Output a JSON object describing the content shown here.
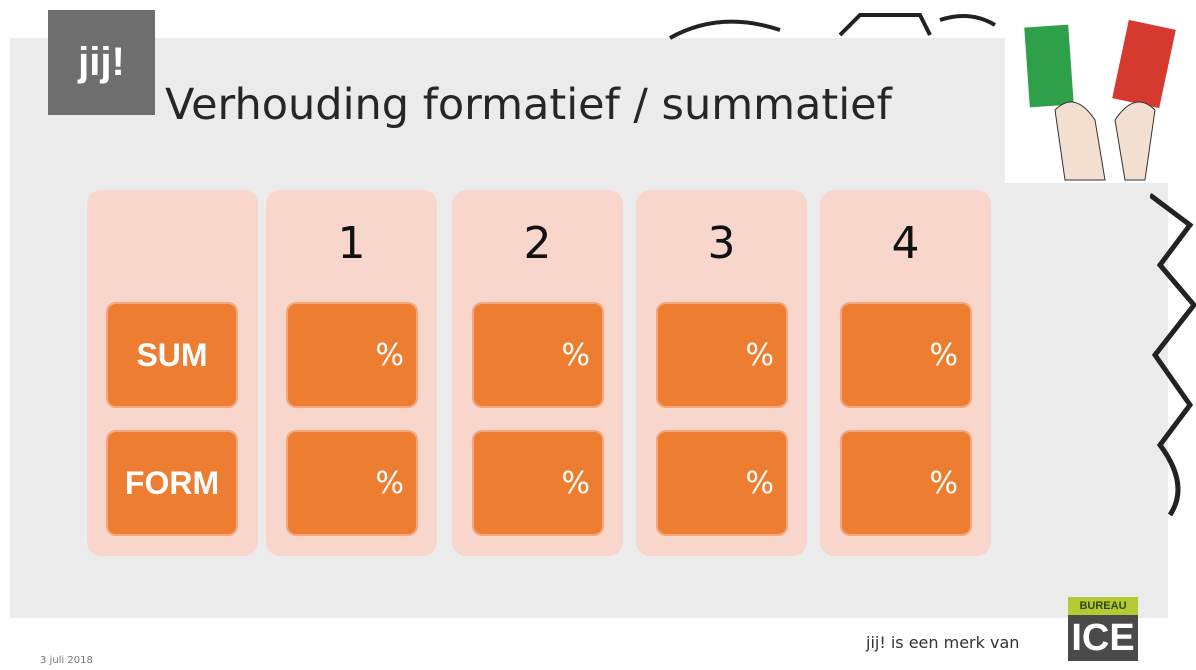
{
  "logo": "jij!",
  "title": "Verhouding formatief / summatief",
  "table": {
    "columns": [
      "1",
      "2",
      "3",
      "4"
    ],
    "rows": [
      {
        "label": "SUM",
        "cells": [
          "%",
          "%",
          "%",
          "%"
        ]
      },
      {
        "label": "FORM",
        "cells": [
          "%",
          "%",
          "%",
          "%"
        ]
      }
    ]
  },
  "footer": {
    "date": "3 juli 2018",
    "brand": "jij! is een merk van",
    "badge_top": "BUREAU",
    "badge": "ICE"
  }
}
